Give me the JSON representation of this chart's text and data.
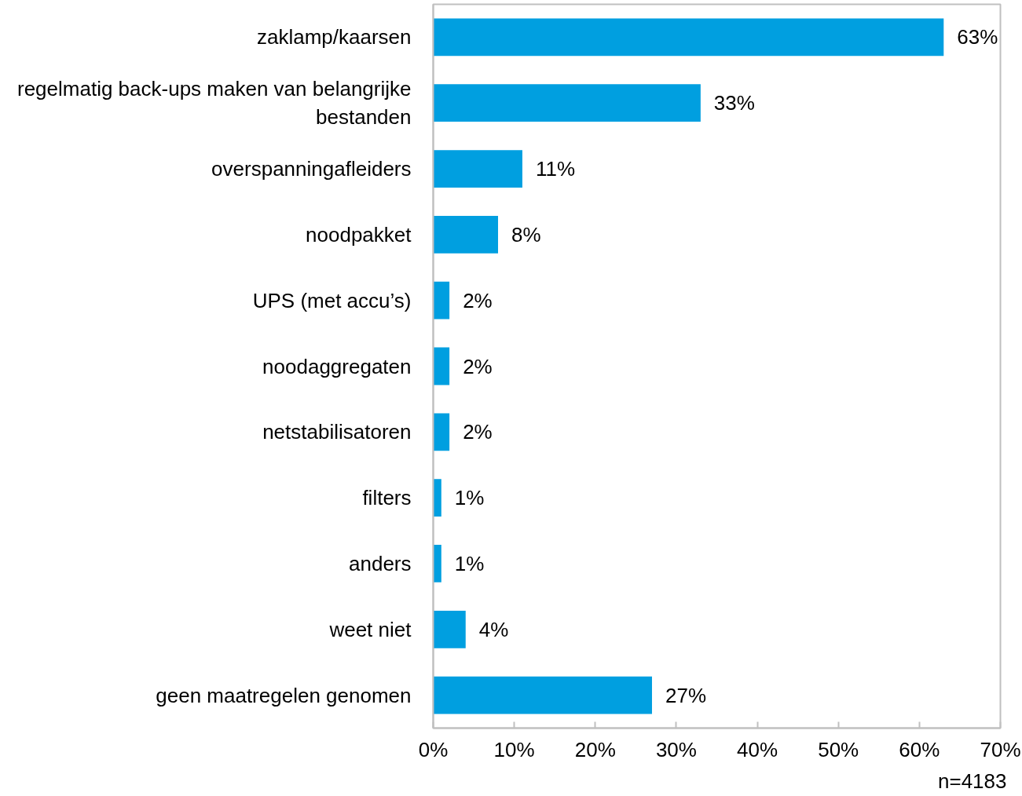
{
  "chart_data": {
    "type": "bar",
    "orientation": "horizontal",
    "categories": [
      "zaklamp/kaarsen",
      "regelmatig back-ups maken van belangrijke bestanden",
      "overspanningafleiders",
      "noodpakket",
      "UPS (met accu’s)",
      "noodaggregaten",
      "netstabilisatoren",
      "filters",
      "anders",
      "weet niet",
      "geen maatregelen genomen"
    ],
    "values": [
      63,
      33,
      11,
      8,
      2,
      2,
      2,
      1,
      1,
      4,
      27
    ],
    "value_labels": [
      "63%",
      "33%",
      "11%",
      "8%",
      "2%",
      "2%",
      "2%",
      "1%",
      "1%",
      "4%",
      "27%"
    ],
    "color": "#009fe0",
    "xlim": [
      0,
      70
    ],
    "xticks": [
      {
        "value": 0,
        "label": "0%"
      },
      {
        "value": 10,
        "label": "10%"
      },
      {
        "value": 20,
        "label": "20%"
      },
      {
        "value": 30,
        "label": "30%"
      },
      {
        "value": 40,
        "label": "40%"
      },
      {
        "value": 50,
        "label": "50%"
      },
      {
        "value": 60,
        "label": "60%"
      },
      {
        "value": 70,
        "label": "70%"
      }
    ],
    "grid": false,
    "annotations": [
      "n=4183"
    ]
  }
}
